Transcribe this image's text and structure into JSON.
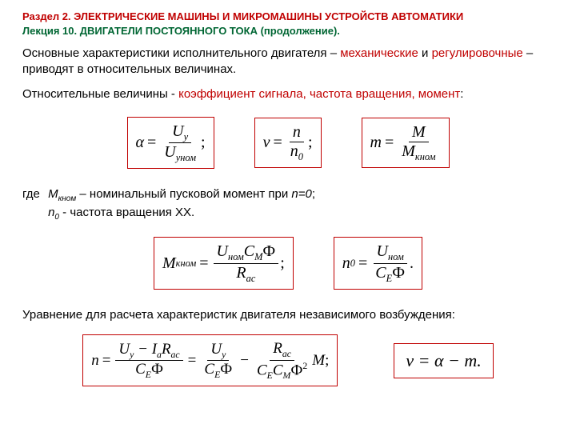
{
  "header": {
    "line1": "Раздел 2. ЭЛЕКТРИЧЕСКИЕ МАШИНЫ И МИКРОМАШИНЫ УСТРОЙСТВ АВТОМАТИКИ",
    "line2": "Лекция 10. ДВИГАТЕЛИ ПОСТОЯННОГО ТОКА (продолжение)."
  },
  "p1": {
    "a": "Основные характеристики исполнительного двигателя – ",
    "b": "механические",
    "c": " и ",
    "d": "регулировочные",
    "e": " – приводят в относительных величинах."
  },
  "p2": {
    "a": "Относительные величины - ",
    "b": "коэффициент сигнала, частота вращения, момент",
    "c": ":"
  },
  "f1": {
    "lhs": "α",
    "num": "U",
    "num_sub": "у",
    "den": "U",
    "den_sub": "уном",
    "tail": ";"
  },
  "f2": {
    "lhs": "ν",
    "num": "n",
    "den": "n",
    "den_sub": "0",
    "tail": ";"
  },
  "f3": {
    "lhs": "m",
    "num": "M",
    "den": "M",
    "den_sub": "кном"
  },
  "gde": {
    "w": "где",
    "l1a": "М",
    "l1a_sub": "кном",
    "l1b": " – номинальный пусковой момент при ",
    "l1c": "n=0",
    "l1d": ";",
    "l2a": "n",
    "l2a_sub": "0",
    "l2b": " - частота вращения ХХ."
  },
  "f4": {
    "lhs": "M",
    "lhs_sub": "кном",
    "num_a": "U",
    "num_a_sub": "ном",
    "num_b": "C",
    "num_b_sub": "M",
    "num_c": "Ф",
    "den_a": "R",
    "den_a_sub": "ас",
    "tail": ";"
  },
  "f5": {
    "lhs": "n",
    "lhs_sub": "0",
    "num_a": "U",
    "num_a_sub": "ном",
    "den_a": "C",
    "den_a_sub": "E",
    "den_b": "Ф",
    "tail": "."
  },
  "p3": "Уравнение для расчета характеристик двигателя независимого возбуждения:",
  "f6": {
    "lhs": "n",
    "t1_num_a": "U",
    "t1_num_a_sub": "у",
    "t1_minus": " − ",
    "t1_num_b": "I",
    "t1_num_b_sub": "a",
    "t1_num_c": "R",
    "t1_num_c_sub": "ас",
    "den_a": "C",
    "den_a_sub": "E",
    "den_b": "Ф",
    "t2_num_a": "U",
    "t2_num_a_sub": "у",
    "t3_num_a": "R",
    "t3_num_a_sub": "ас",
    "t3_den_a": "C",
    "t3_den_a_sub": "E",
    "t3_den_b": "C",
    "t3_den_b_sub": "M",
    "t3_den_c": "Ф",
    "t3_sup": "2",
    "t3_tail": "M",
    "tail": ";"
  },
  "f7": {
    "text": "ν = α − m."
  }
}
